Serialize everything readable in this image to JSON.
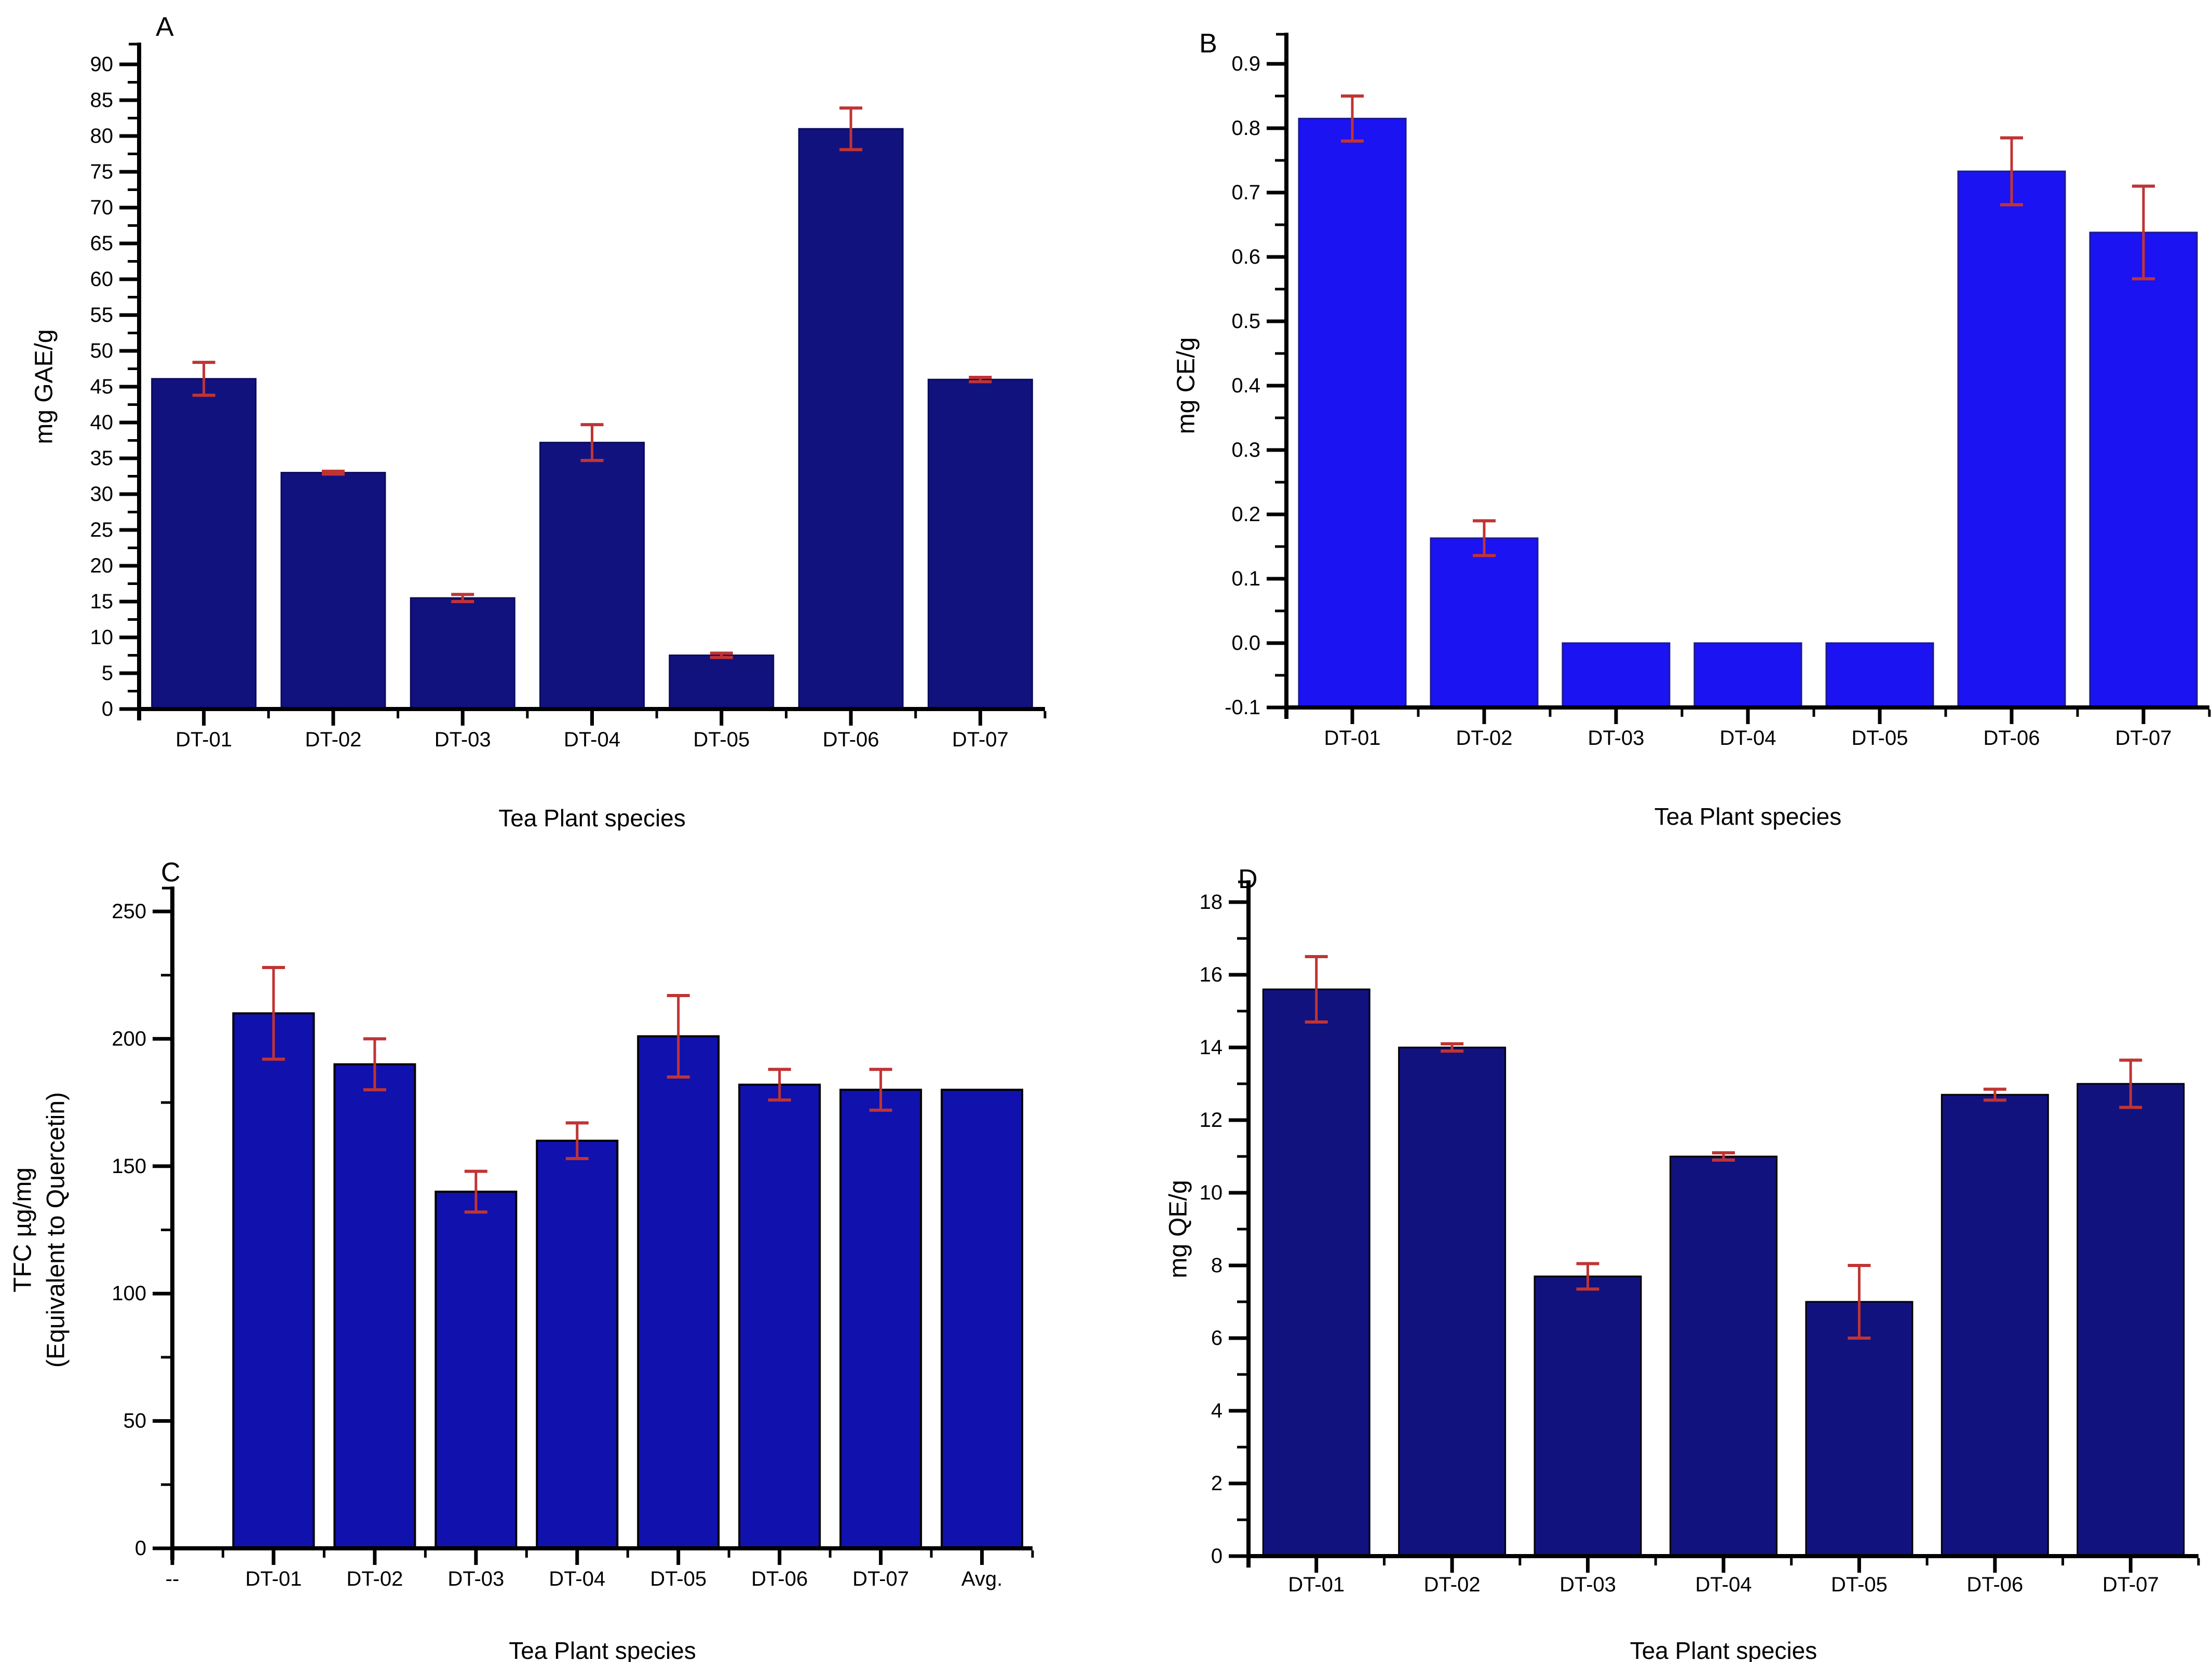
{
  "figure": {
    "background": "#ffffff",
    "axis_color": "#000000",
    "text_color": "#000000"
  },
  "chart_data": [
    {
      "type": "bar",
      "panel_label": "A",
      "xlabel": "Tea Plant species",
      "ylabel_lines": [
        "mg GAE/g"
      ],
      "categories": [
        "DT-01",
        "DT-02",
        "DT-03",
        "DT-04",
        "DT-05",
        "DT-06",
        "DT-07"
      ],
      "values": [
        46.1,
        33.0,
        15.5,
        37.2,
        7.5,
        81.0,
        46.0
      ],
      "errors": [
        2.3,
        0.2,
        0.5,
        2.5,
        0.3,
        2.9,
        0.3
      ],
      "ylim": [
        0,
        90
      ],
      "ytick_major": 5,
      "ytick_minor": 2.5,
      "ytick_decimals": 0,
      "grid": false,
      "legend": "none",
      "bar_color": "#12127e",
      "bar_edge_color": "#0b0b5e",
      "error_color": "#c03434"
    },
    {
      "type": "bar",
      "panel_label": "B",
      "xlabel": "Tea Plant species",
      "ylabel_lines": [
        "mg CE/g"
      ],
      "categories": [
        "DT-01",
        "DT-02",
        "DT-03",
        "DT-04",
        "DT-05",
        "DT-06",
        "DT-07"
      ],
      "values": [
        0.815,
        0.163,
        0.0,
        0.0,
        0.0,
        0.733,
        0.638
      ],
      "errors": [
        0.035,
        0.027,
        0,
        0,
        0,
        0.052,
        0.072
      ],
      "ylim": [
        -0.1,
        0.9
      ],
      "ytick_major": 0.1,
      "ytick_minor": 0.05,
      "ytick_decimals": 1,
      "grid": false,
      "legend": "none",
      "bar_color": "#1b13f2",
      "bar_edge_color": "#1b1b8c",
      "error_color": "#c03434"
    },
    {
      "type": "bar",
      "panel_label": "C",
      "xlabel": "Tea Plant species",
      "ylabel_lines": [
        "TFC µg/mg",
        "(Equivalent to Quercetin)"
      ],
      "categories": [
        "--",
        "DT-01",
        "DT-02",
        "DT-03",
        "DT-04",
        "DT-05",
        "DT-06",
        "DT-07",
        "Avg."
      ],
      "values": [
        null,
        210,
        190,
        140,
        160,
        201,
        182,
        180,
        180
      ],
      "errors": [
        0,
        18,
        10,
        8,
        7,
        16,
        6,
        8,
        0
      ],
      "ylim": [
        0,
        250
      ],
      "ytick_major": 50,
      "ytick_minor": 25,
      "ytick_decimals": 0,
      "grid": false,
      "legend": "none",
      "bar_color": "#1111ad",
      "bar_edge_color": "#000000",
      "error_color": "#c03434"
    },
    {
      "type": "bar",
      "panel_label": "D",
      "xlabel": "Tea Plant species",
      "ylabel_lines": [
        "mg QE/g"
      ],
      "categories": [
        "DT-01",
        "DT-02",
        "DT-03",
        "DT-04",
        "DT-05",
        "DT-06",
        "DT-07"
      ],
      "values": [
        15.6,
        14.0,
        7.7,
        11.0,
        7.0,
        12.7,
        13.0
      ],
      "errors": [
        0.9,
        0.1,
        0.35,
        0.1,
        1.0,
        0.15,
        0.65
      ],
      "ylim": [
        0,
        18
      ],
      "ytick_major": 2,
      "ytick_minor": 1,
      "ytick_decimals": 0,
      "grid": false,
      "legend": "none",
      "bar_color": "#12127e",
      "bar_edge_color": "#000000",
      "error_color": "#c03434"
    }
  ]
}
